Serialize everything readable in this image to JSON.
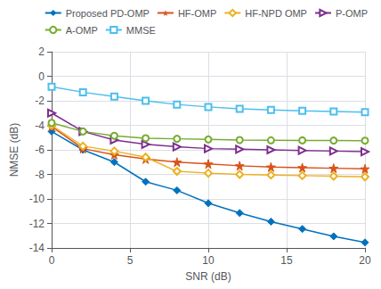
{
  "chart_data": {
    "type": "line",
    "xlabel": "SNR (dB)",
    "ylabel": "NMSE (dB)",
    "x": [
      0,
      2,
      4,
      6,
      8,
      10,
      12,
      14,
      16,
      18,
      20
    ],
    "series": [
      {
        "name": "Proposed PD-OMP",
        "color": "#0072BD",
        "marker": "diamond",
        "values": [
          -4.5,
          -6.0,
          -7.0,
          -8.6,
          -9.3,
          -10.35,
          -11.15,
          -11.85,
          -12.45,
          -13.05,
          -13.55
        ]
      },
      {
        "name": "HF-OMP",
        "color": "#D95319",
        "marker": "star",
        "values": [
          -4.1,
          -5.9,
          -6.4,
          -6.75,
          -7.0,
          -7.15,
          -7.3,
          -7.4,
          -7.45,
          -7.5,
          -7.55
        ]
      },
      {
        "name": "HF-NPD OMP",
        "color": "#EDB120",
        "marker": "diamond-open",
        "values": [
          -4.0,
          -5.7,
          -6.1,
          -6.6,
          -7.75,
          -7.9,
          -8.0,
          -8.05,
          -8.1,
          -8.15,
          -8.2
        ]
      },
      {
        "name": "P-OMP",
        "color": "#7E2F8E",
        "marker": "triangle-right-open",
        "values": [
          -3.0,
          -4.5,
          -5.2,
          -5.55,
          -5.75,
          -5.9,
          -5.95,
          -6.0,
          -6.05,
          -6.1,
          -6.15
        ]
      },
      {
        "name": "A-OMP",
        "color": "#77AC30",
        "marker": "circle-open",
        "values": [
          -3.8,
          -4.5,
          -4.85,
          -5.05,
          -5.1,
          -5.15,
          -5.2,
          -5.22,
          -5.23,
          -5.24,
          -5.25
        ]
      },
      {
        "name": "MMSE",
        "color": "#4DBEEE",
        "marker": "square-open",
        "values": [
          -0.85,
          -1.3,
          -1.65,
          -2.0,
          -2.3,
          -2.5,
          -2.65,
          -2.75,
          -2.82,
          -2.87,
          -2.92
        ]
      }
    ],
    "xlim": [
      0,
      20
    ],
    "xticks": [
      0,
      5,
      10,
      15,
      20
    ],
    "ylim": [
      -14,
      2
    ],
    "yticks": [
      2,
      0,
      -2,
      -4,
      -6,
      -8,
      -10,
      -12,
      -14
    ],
    "grid": true,
    "legend": "upper right"
  }
}
